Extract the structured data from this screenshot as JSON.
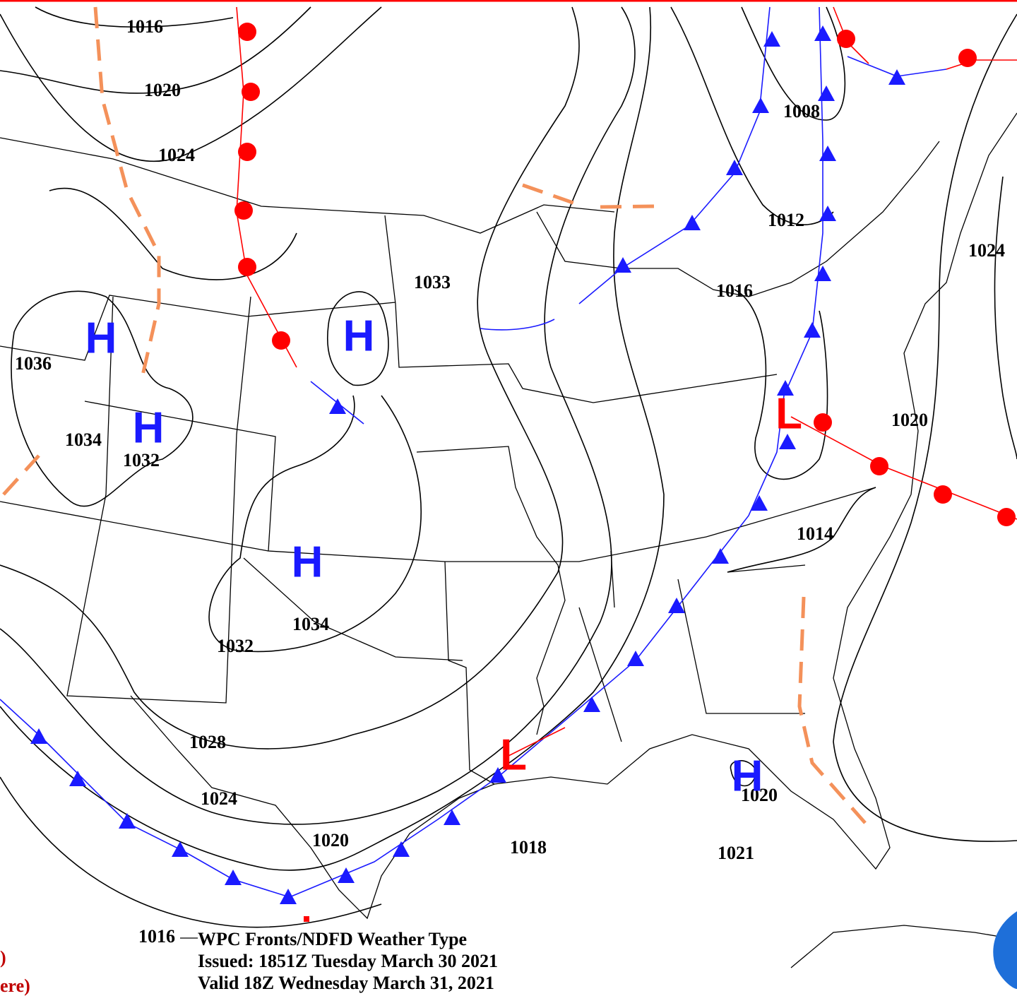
{
  "map": {
    "isobar_labels": [
      "1016",
      "1020",
      "1024",
      "1036",
      "1034",
      "1032",
      "1033",
      "1034",
      "1032",
      "1028",
      "1024",
      "1020",
      "1018",
      "1021",
      "1020",
      "1014",
      "1020",
      "1024",
      "1016",
      "1012",
      "1008",
      "1016"
    ],
    "pressure_centers": [
      {
        "label": "H"
      },
      {
        "label": "H"
      },
      {
        "label": "H"
      },
      {
        "label": "H"
      },
      {
        "label": "H"
      },
      {
        "label": "L"
      },
      {
        "label": "L"
      }
    ],
    "legend": {
      "lines": [
        "WPC Fronts/NDFD Weather Type",
        "Issued: 1851Z Tuesday March 30 2021",
        "Valid 18Z Wednesday March 31, 2021"
      ]
    },
    "cutoff_text": [
      ")",
      "ere)"
    ]
  }
}
